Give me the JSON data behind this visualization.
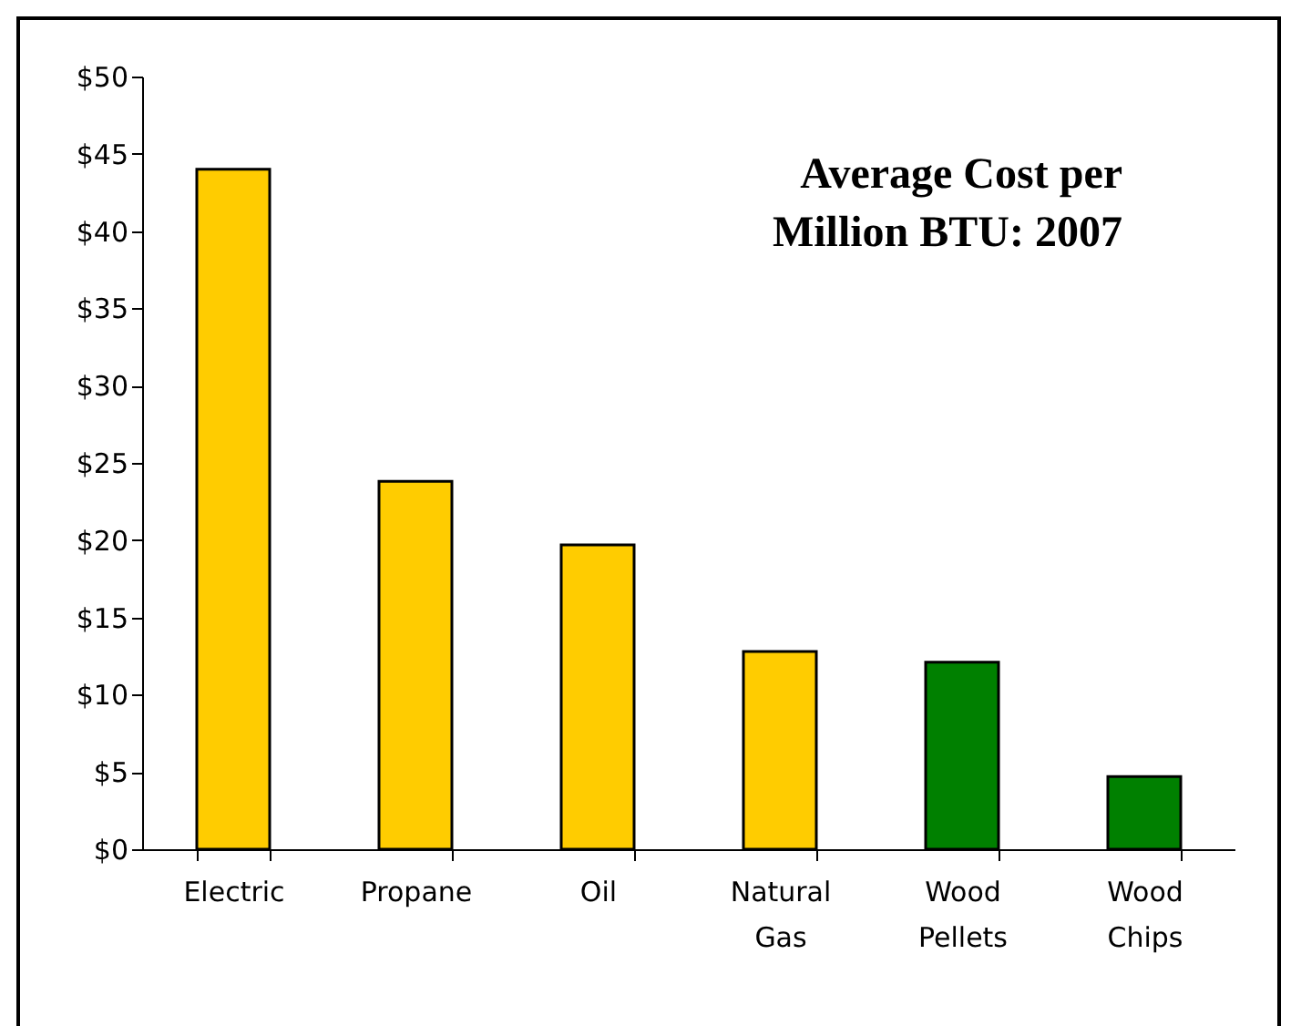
{
  "chart_data": {
    "type": "bar",
    "title": "Average Cost per Million BTU: 2007",
    "categories": [
      "Electric",
      "Propane",
      "Oil",
      "Natural Gas",
      "Wood Pellets",
      "Wood Chips"
    ],
    "values": [
      44.0,
      23.8,
      19.7,
      12.8,
      12.1,
      4.7
    ],
    "colors": [
      "#ffcc00",
      "#ffcc00",
      "#ffcc00",
      "#ffcc00",
      "#008000",
      "#008000"
    ],
    "ylim": [
      0,
      50
    ],
    "yticks": [
      {
        "value": 0,
        "label": "$0"
      },
      {
        "value": 5,
        "label": "$5"
      },
      {
        "value": 10,
        "label": "$10"
      },
      {
        "value": 15,
        "label": "$15"
      },
      {
        "value": 20,
        "label": "$20"
      },
      {
        "value": 25,
        "label": "$25"
      },
      {
        "value": 30,
        "label": "$30"
      },
      {
        "value": 35,
        "label": "$35"
      },
      {
        "value": 40,
        "label": "$40"
      },
      {
        "value": 45,
        "label": "$45"
      },
      {
        "value": 50,
        "label": "$50"
      }
    ],
    "grid": false
  }
}
